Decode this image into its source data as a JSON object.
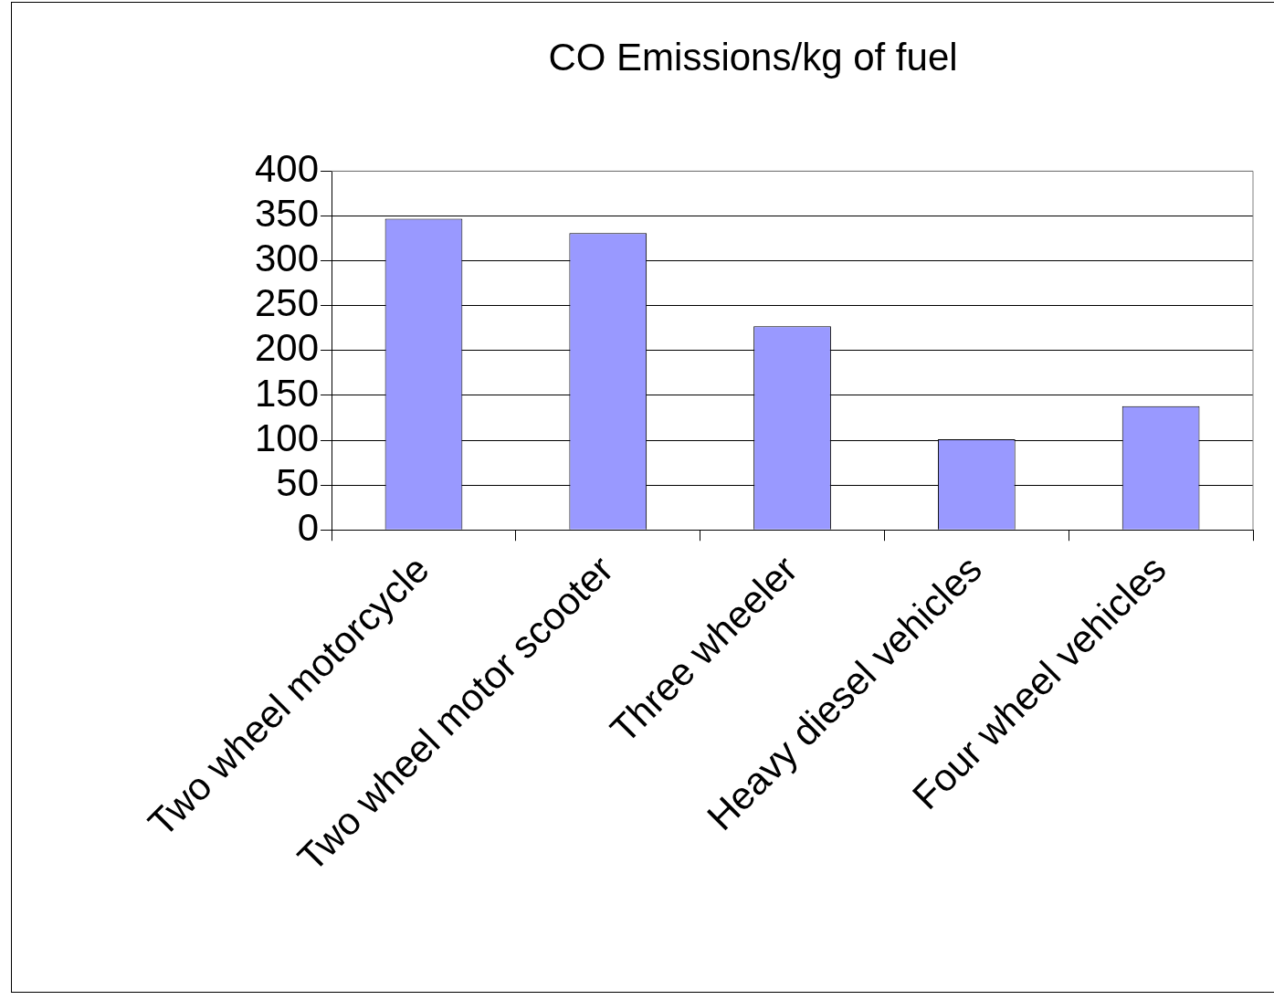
{
  "chart_data": {
    "type": "bar",
    "title": "CO Emissions/kg of fuel",
    "categories": [
      "Two wheel motorcycle",
      "Two wheel motor scooter",
      "Three wheeler",
      "Heavy diesel vehicles",
      "Four wheel vehicles"
    ],
    "values": [
      347,
      331,
      227,
      101,
      138
    ],
    "color": "#9999ff",
    "ylim": [
      0,
      400
    ],
    "yticks": [
      0,
      50,
      100,
      150,
      200,
      250,
      300,
      350,
      400
    ],
    "grid": "y",
    "legend": false
  }
}
